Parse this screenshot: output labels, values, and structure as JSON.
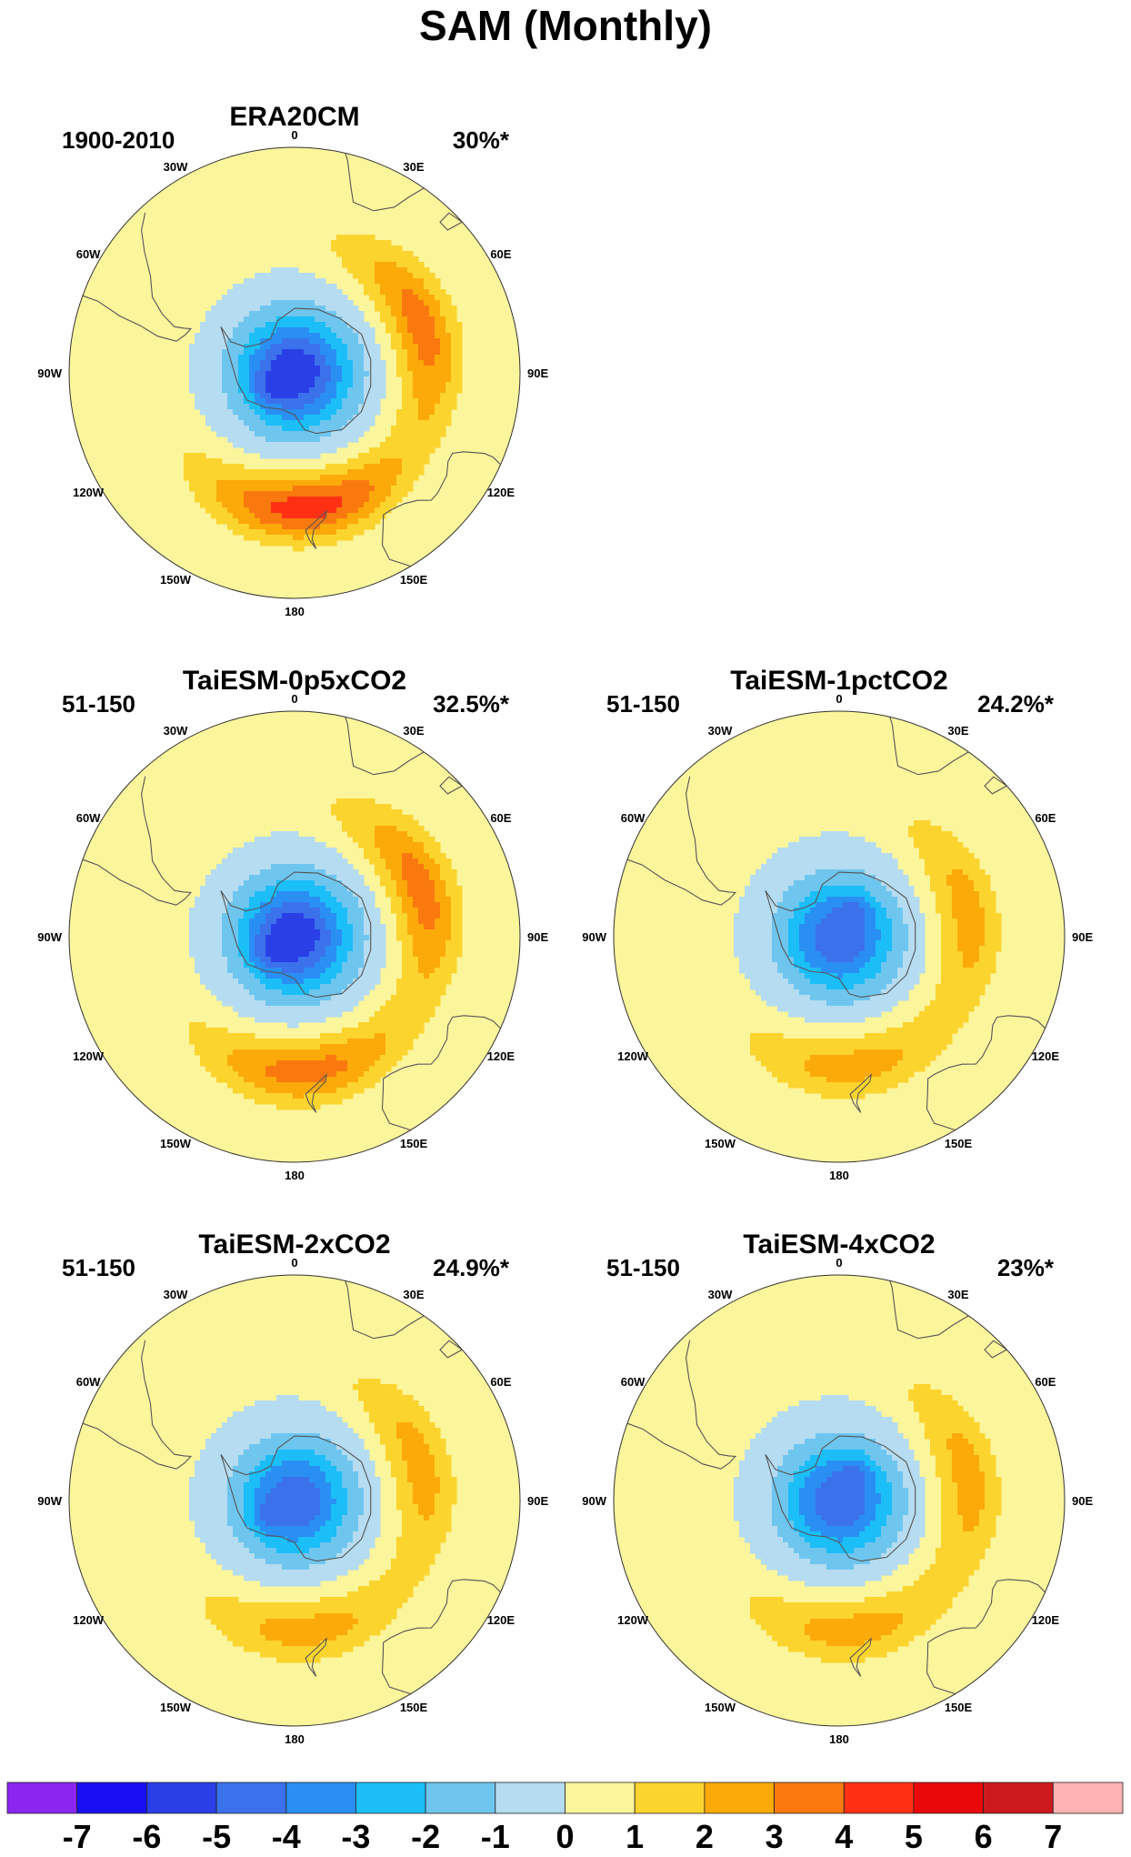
{
  "figure": {
    "title": "SAM (Monthly)"
  },
  "chart_data": {
    "type": "contour-map",
    "projection": "south-polar-stereographic",
    "variable": "SAM pattern (regression map)",
    "longitude_labels": [
      "0",
      "30E",
      "60E",
      "90E",
      "120E",
      "150E",
      "180",
      "150W",
      "120W",
      "90W",
      "60W",
      "30W"
    ],
    "panels": [
      {
        "title": "ERA20CM",
        "period": "1900-2010",
        "variance": "30%*",
        "min": -6,
        "max": 4,
        "features": [
          {
            "kind": "low",
            "lat": -80,
            "lon": -120,
            "value": -6
          },
          {
            "kind": "high",
            "lat": -48,
            "lon": 70,
            "value": 3
          },
          {
            "kind": "high",
            "lat": -48,
            "lon": 175,
            "value": 4
          }
        ]
      },
      {
        "title": "TaiESM-0p5xCO2",
        "period": "51-150",
        "variance": "32.5%*",
        "min": -6,
        "max": 3,
        "features": [
          {
            "kind": "low",
            "lat": -80,
            "lon": -120,
            "value": -6
          },
          {
            "kind": "high",
            "lat": -48,
            "lon": 70,
            "value": 3
          },
          {
            "kind": "high",
            "lat": -48,
            "lon": 175,
            "value": 3
          }
        ]
      },
      {
        "title": "TaiESM-1pctCO2",
        "period": "51-150",
        "variance": "24.2%*",
        "min": -5,
        "max": 2,
        "features": [
          {
            "kind": "low",
            "lat": -80,
            "lon": 30,
            "value": -5
          },
          {
            "kind": "high",
            "lat": -50,
            "lon": 80,
            "value": 2
          },
          {
            "kind": "high",
            "lat": -50,
            "lon": 175,
            "value": 2
          }
        ]
      },
      {
        "title": "TaiESM-2xCO2",
        "period": "51-150",
        "variance": "24.9%*",
        "min": -5,
        "max": 2,
        "features": [
          {
            "kind": "low",
            "lat": -80,
            "lon": -120,
            "value": -5
          },
          {
            "kind": "high",
            "lat": -50,
            "lon": 75,
            "value": 2
          },
          {
            "kind": "high",
            "lat": -50,
            "lon": 175,
            "value": 2
          }
        ]
      },
      {
        "title": "TaiESM-4xCO2",
        "period": "51-150",
        "variance": "23%*",
        "min": -5,
        "max": 2,
        "features": [
          {
            "kind": "low",
            "lat": -80,
            "lon": 30,
            "value": -5
          },
          {
            "kind": "high",
            "lat": -50,
            "lon": 80,
            "value": 2
          },
          {
            "kind": "high",
            "lat": -50,
            "lon": 175,
            "value": 2
          }
        ]
      }
    ],
    "colorbar": {
      "ticks": [
        "-7",
        "-6",
        "-5",
        "-4",
        "-3",
        "-2",
        "-1",
        "0",
        "1",
        "2",
        "3",
        "4",
        "5",
        "6",
        "7"
      ],
      "levels": [
        -7,
        -6,
        -5,
        -4,
        -3,
        -2,
        -1,
        0,
        1,
        2,
        3,
        4,
        5,
        6,
        7
      ],
      "colors": [
        "#8b25f0",
        "#1810f2",
        "#2a3fe6",
        "#3b72eb",
        "#2a8ff3",
        "#1bbef7",
        "#6ec6ef",
        "#b5dcf1",
        "#fbf59c",
        "#fcd42e",
        "#fbaa0a",
        "#f9790f",
        "#ff3014",
        "#e9090b",
        "#cc1a1e",
        "#fdb2b4"
      ]
    }
  }
}
